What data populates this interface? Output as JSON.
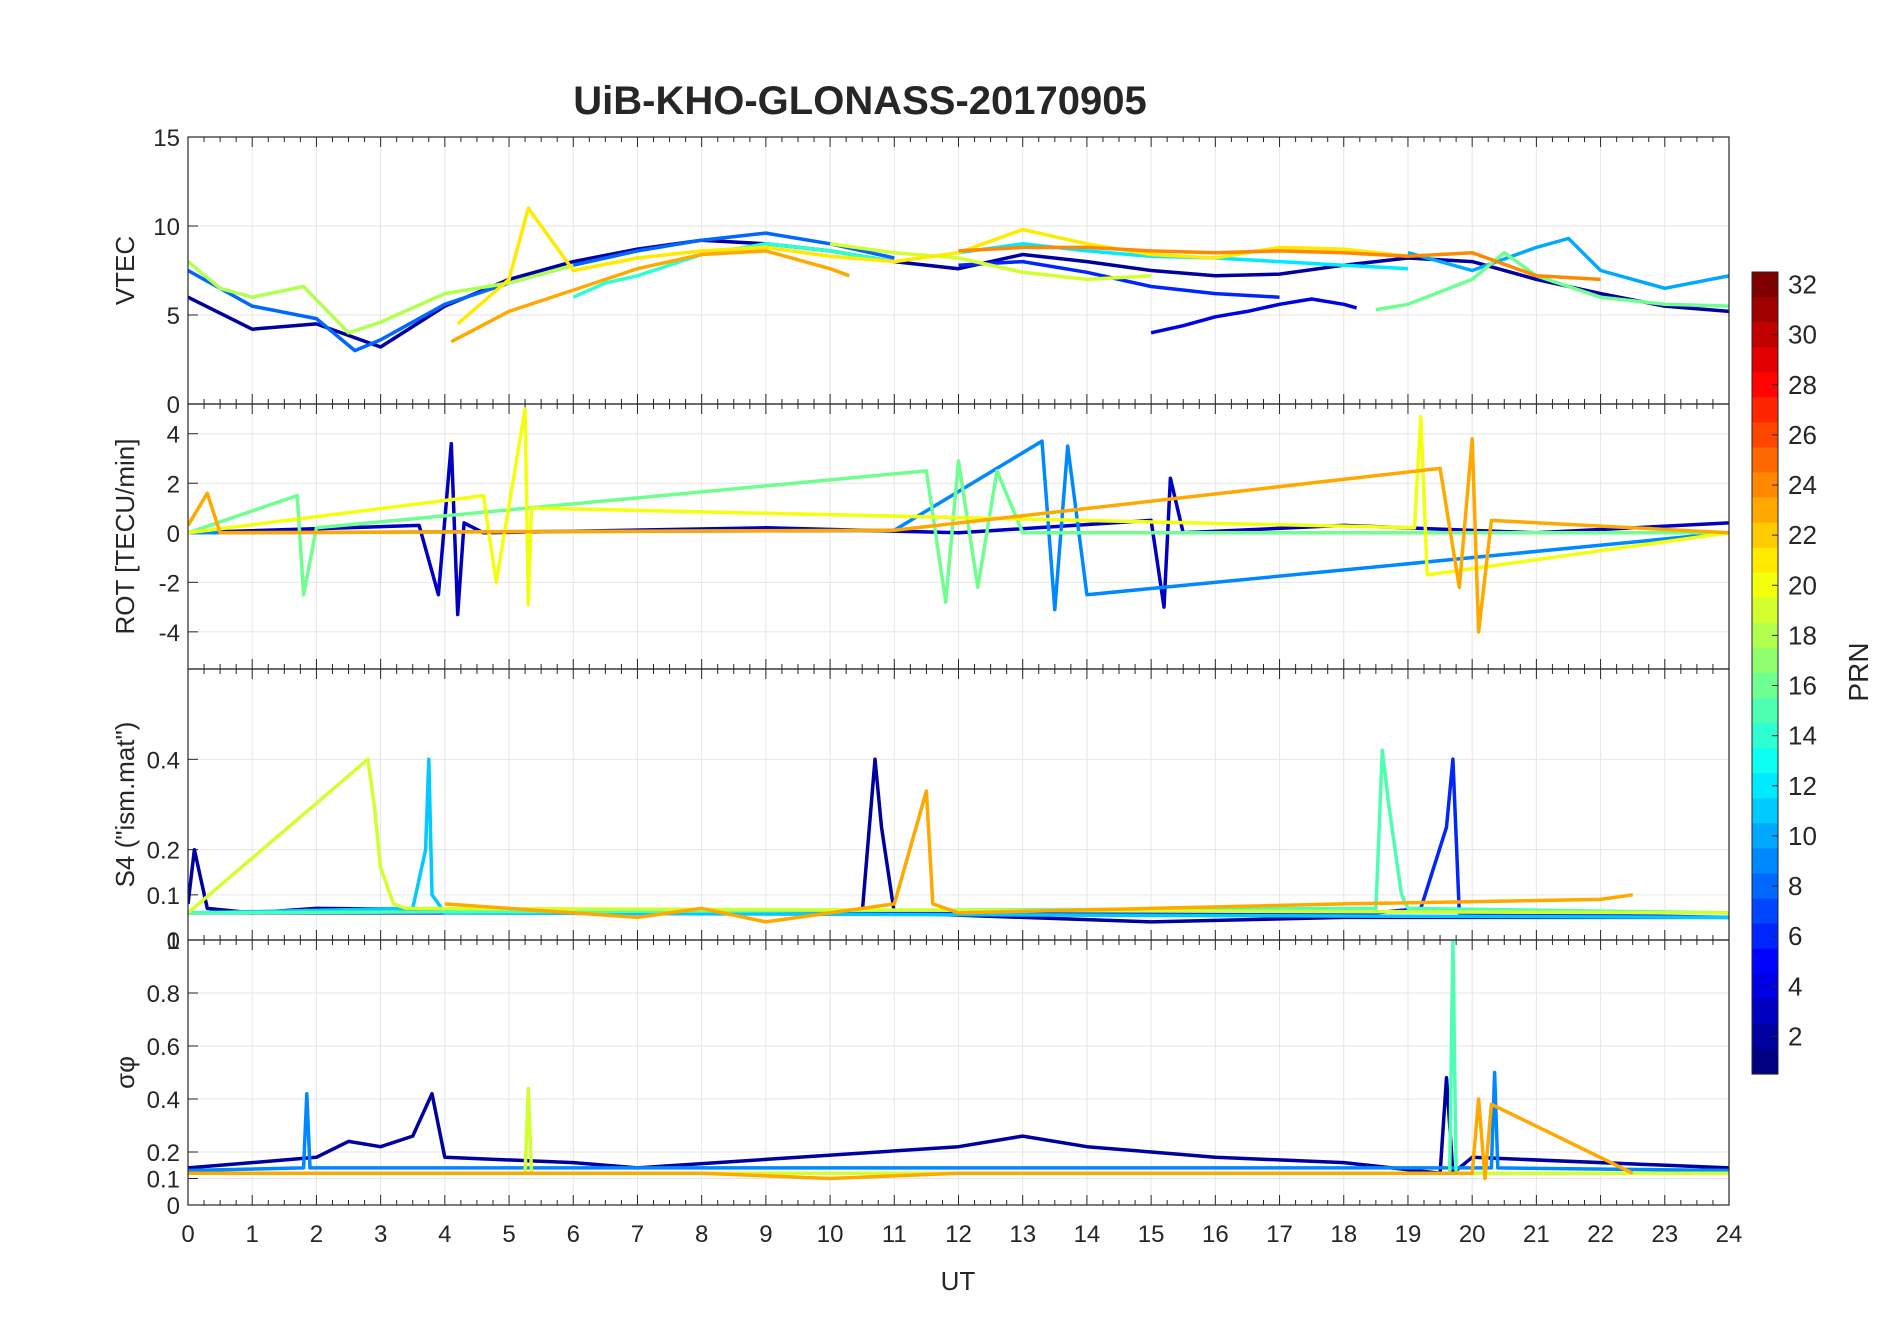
{
  "chart_data": {
    "type": "line",
    "title": "UiB-KHO-GLONASS-20170905",
    "xlabel": "UT",
    "xlim": [
      0,
      24
    ],
    "xticks": [
      "0",
      "1",
      "2",
      "3",
      "4",
      "5",
      "6",
      "7",
      "8",
      "9",
      "10",
      "11",
      "12",
      "13",
      "14",
      "15",
      "16",
      "17",
      "18",
      "19",
      "20",
      "21",
      "22",
      "23",
      "24"
    ],
    "colorbar": {
      "label": "PRN",
      "range": [
        1,
        32
      ],
      "ticks": [
        "2",
        "4",
        "6",
        "8",
        "10",
        "12",
        "14",
        "16",
        "18",
        "20",
        "22",
        "24",
        "26",
        "28",
        "30",
        "32"
      ]
    },
    "panels": [
      {
        "id": "vtec",
        "ylabel": "VTEC",
        "ylim": [
          0,
          15
        ],
        "yticks": [
          {
            "v": 0,
            "t": "0"
          },
          {
            "v": 5,
            "t": "5"
          },
          {
            "v": 10,
            "t": "10"
          },
          {
            "v": 15,
            "t": "15"
          }
        ],
        "series": [
          {
            "prn": 2,
            "x": [
              0,
              1,
              2,
              3,
              4,
              5,
              6,
              7,
              8,
              9,
              10,
              11,
              12,
              13,
              14,
              15,
              16,
              17,
              18,
              19,
              20,
              21,
              22,
              23,
              24
            ],
            "y": [
              6.0,
              4.2,
              4.5,
              3.2,
              5.5,
              7.0,
              8.0,
              8.7,
              9.2,
              9.0,
              8.6,
              8.0,
              7.6,
              8.4,
              8.0,
              7.5,
              7.2,
              7.3,
              7.8,
              8.2,
              8.0,
              7.0,
              6.2,
              5.5,
              5.2
            ]
          },
          {
            "prn": 4,
            "x": [
              15,
              15.5,
              16,
              16.5,
              17,
              17.5,
              18,
              18.2
            ],
            "y": [
              4.0,
              4.4,
              4.9,
              5.2,
              5.6,
              5.9,
              5.6,
              5.4
            ]
          },
          {
            "prn": 6,
            "x": [
              12,
              13,
              14,
              15,
              16,
              17
            ],
            "y": [
              7.8,
              8.0,
              7.4,
              6.6,
              6.2,
              6.0
            ]
          },
          {
            "prn": 8,
            "x": [
              0,
              1,
              2,
              2.6,
              3,
              4,
              5,
              6,
              7,
              8,
              9,
              10,
              11
            ],
            "y": [
              7.5,
              5.5,
              4.8,
              3.0,
              3.6,
              5.6,
              6.8,
              7.8,
              8.6,
              9.2,
              9.6,
              9.0,
              8.2
            ]
          },
          {
            "prn": 10,
            "x": [
              19,
              20,
              21,
              21.5,
              22,
              23,
              24
            ],
            "y": [
              8.5,
              7.5,
              8.8,
              9.3,
              7.5,
              6.5,
              7.2
            ]
          },
          {
            "prn": 12,
            "x": [
              12,
              13,
              14,
              15,
              16,
              17,
              18,
              19
            ],
            "y": [
              8.5,
              9.0,
              8.6,
              8.3,
              8.2,
              8.0,
              7.8,
              7.6
            ]
          },
          {
            "prn": 14,
            "x": [
              6,
              6.5,
              7,
              8,
              9,
              10,
              11
            ],
            "y": [
              6.0,
              6.8,
              7.2,
              8.4,
              9.0,
              8.6,
              8.0
            ]
          },
          {
            "prn": 16,
            "x": [
              18.5,
              19,
              20,
              20.5,
              21,
              22,
              23,
              24
            ],
            "y": [
              5.3,
              5.6,
              7.0,
              8.5,
              7.2,
              6.0,
              5.6,
              5.5
            ]
          },
          {
            "prn": 18,
            "x": [
              0,
              0.5,
              1,
              1.8,
              2.5,
              3,
              4,
              5,
              6
            ],
            "y": [
              8.0,
              6.5,
              6.0,
              6.6,
              4.0,
              4.6,
              6.2,
              6.8,
              7.8
            ]
          },
          {
            "prn": 19,
            "x": [
              10,
              11,
              12,
              13,
              14,
              15
            ],
            "y": [
              9.0,
              8.5,
              8.2,
              7.4,
              7.0,
              7.2
            ]
          },
          {
            "prn": 21,
            "x": [
              4.2,
              5,
              5.3,
              6,
              7,
              8,
              9,
              10,
              11,
              12,
              13,
              14,
              15,
              16,
              17,
              18,
              19
            ],
            "y": [
              4.5,
              7.0,
              11.0,
              7.5,
              8.2,
              8.6,
              8.8,
              8.3,
              8.0,
              8.5,
              9.8,
              9.0,
              8.4,
              8.2,
              8.8,
              8.7,
              8.3
            ]
          },
          {
            "prn": 23,
            "x": [
              4.1,
              5,
              6,
              7,
              8,
              9,
              10,
              10.3
            ],
            "y": [
              3.5,
              5.2,
              6.4,
              7.6,
              8.4,
              8.6,
              7.6,
              7.2
            ]
          },
          {
            "prn": 24,
            "x": [
              12,
              13,
              14,
              15,
              16,
              17,
              18,
              19,
              20,
              21,
              22
            ],
            "y": [
              8.6,
              8.8,
              8.8,
              8.6,
              8.5,
              8.6,
              8.5,
              8.3,
              8.5,
              7.2,
              7.0
            ]
          }
        ]
      },
      {
        "id": "rot",
        "ylabel": "ROT [TECU/min]",
        "ylim": [
          -5.5,
          5.2
        ],
        "yticks": [
          {
            "v": -4,
            "t": "-4"
          },
          {
            "v": -2,
            "t": "-2"
          },
          {
            "v": 0,
            "t": "0"
          },
          {
            "v": 2,
            "t": "2"
          },
          {
            "v": 4,
            "t": "4"
          }
        ],
        "series": [
          {
            "prn": 3,
            "x": [
              0,
              3.6,
              3.9,
              4.1,
              4.2,
              4.3,
              4.6,
              9,
              12,
              15,
              15.2,
              15.3,
              15.5,
              18,
              21,
              24
            ],
            "y": [
              0,
              0.3,
              -2.5,
              3.6,
              -3.3,
              0.4,
              0,
              0.2,
              0,
              0.5,
              -3.0,
              2.2,
              0,
              0.3,
              0,
              0.4
            ]
          },
          {
            "prn": 9,
            "x": [
              0,
              11,
              13.3,
              13.5,
              13.7,
              14,
              24
            ],
            "y": [
              0,
              0.1,
              3.7,
              -3.1,
              3.5,
              -2.5,
              0
            ]
          },
          {
            "prn": 16,
            "x": [
              0,
              1.7,
              1.8,
              2,
              11.5,
              11.8,
              12,
              12.3,
              12.6,
              13,
              24
            ],
            "y": [
              0,
              1.5,
              -2.5,
              0.2,
              2.5,
              -2.8,
              2.9,
              -2.2,
              2.5,
              0,
              0
            ]
          },
          {
            "prn": 20,
            "x": [
              0,
              4.6,
              4.8,
              5.25,
              5.3,
              5.35,
              19.1,
              19.2,
              19.3,
              24
            ],
            "y": [
              0,
              1.5,
              -2.0,
              5.0,
              -2.9,
              1.0,
              0.2,
              4.7,
              -1.7,
              0
            ]
          },
          {
            "prn": 23,
            "x": [
              0,
              0.3,
              0.5,
              11,
              19.5,
              19.8,
              20,
              20.1,
              20.3,
              24
            ],
            "y": [
              0.3,
              1.6,
              0,
              0.1,
              2.6,
              -2.2,
              3.8,
              -4.0,
              0.5,
              0
            ]
          }
        ]
      },
      {
        "id": "s4",
        "ylabel": "S4 (\"ism.mat\")",
        "ylim": [
          0,
          0.6
        ],
        "yticks": [
          {
            "v": 0,
            "t": "0"
          },
          {
            "v": 0.1,
            "t": "0.1"
          },
          {
            "v": 0.2,
            "t": "0.2"
          },
          {
            "v": 0.4,
            "t": "0.4"
          }
        ],
        "series": [
          {
            "prn": 2,
            "x": [
              0,
              0.1,
              0.3,
              1,
              2,
              10.5,
              10.7,
              10.8,
              11,
              15,
              18,
              24
            ],
            "y": [
              0.08,
              0.2,
              0.07,
              0.06,
              0.07,
              0.06,
              0.4,
              0.25,
              0.06,
              0.04,
              0.05,
              0.05
            ]
          },
          {
            "prn": 6,
            "x": [
              0,
              18.5,
              19.2,
              19.6,
              19.7,
              19.8,
              24
            ],
            "y": [
              0.06,
              0.06,
              0.07,
              0.25,
              0.4,
              0.06,
              0.05
            ]
          },
          {
            "prn": 11,
            "x": [
              0,
              3.5,
              3.7,
              3.75,
              3.8,
              4,
              24
            ],
            "y": [
              0.06,
              0.07,
              0.2,
              0.4,
              0.1,
              0.06,
              0.05
            ]
          },
          {
            "prn": 15,
            "x": [
              0,
              18.5,
              18.6,
              18.7,
              18.9,
              19,
              24
            ],
            "y": [
              0.06,
              0.07,
              0.42,
              0.3,
              0.1,
              0.07,
              0.06
            ]
          },
          {
            "prn": 19,
            "x": [
              0,
              2.8,
              2.9,
              3.0,
              3.2,
              3.4,
              24
            ],
            "y": [
              0.06,
              0.4,
              0.3,
              0.16,
              0.08,
              0.07,
              0.06
            ]
          },
          {
            "prn": 23,
            "x": [
              4,
              6,
              7,
              8,
              9,
              10,
              11,
              11.5,
              11.6,
              12,
              15,
              18,
              22,
              22.5
            ],
            "y": [
              0.08,
              0.06,
              0.05,
              0.07,
              0.04,
              0.06,
              0.08,
              0.33,
              0.08,
              0.06,
              0.07,
              0.08,
              0.09,
              0.1
            ]
          }
        ]
      },
      {
        "id": "sigma",
        "ylabel": "σφ",
        "ylim": [
          0,
          1
        ],
        "yticks": [
          {
            "v": 0,
            "t": "0"
          },
          {
            "v": 0.1,
            "t": "0.1"
          },
          {
            "v": 0.2,
            "t": "0.2"
          },
          {
            "v": 0.4,
            "t": "0.4"
          },
          {
            "v": 0.6,
            "t": "0.6"
          },
          {
            "v": 0.8,
            "t": "0.8"
          },
          {
            "v": 1,
            "t": "1"
          }
        ],
        "series": [
          {
            "prn": 2,
            "x": [
              0,
              2,
              2.5,
              3,
              3.5,
              3.8,
              4,
              6,
              7,
              12,
              13,
              14,
              15,
              16,
              18,
              19.5,
              19.6,
              19.7,
              20,
              24
            ],
            "y": [
              0.14,
              0.18,
              0.24,
              0.22,
              0.26,
              0.42,
              0.18,
              0.16,
              0.14,
              0.22,
              0.26,
              0.22,
              0.2,
              0.18,
              0.16,
              0.12,
              0.48,
              0.12,
              0.18,
              0.14
            ]
          },
          {
            "prn": 9,
            "x": [
              0,
              1.8,
              1.85,
              1.9,
              20.3,
              20.35,
              20.4,
              24
            ],
            "y": [
              0.13,
              0.14,
              0.42,
              0.14,
              0.14,
              0.5,
              0.14,
              0.13
            ]
          },
          {
            "prn": 15,
            "x": [
              0,
              19.65,
              19.7,
              19.75,
              24
            ],
            "y": [
              0.12,
              0.12,
              1.0,
              0.12,
              0.12
            ]
          },
          {
            "prn": 19,
            "x": [
              0,
              5.25,
              5.3,
              5.35,
              12.6,
              24
            ],
            "y": [
              0.12,
              0.12,
              0.44,
              0.12,
              0.12,
              0.12
            ]
          },
          {
            "prn": 23,
            "x": [
              0,
              8,
              10,
              12,
              18,
              20,
              20.1,
              20.2,
              20.3,
              22.5
            ],
            "y": [
              0.12,
              0.12,
              0.1,
              0.12,
              0.12,
              0.12,
              0.4,
              0.1,
              0.38,
              0.12
            ]
          }
        ]
      }
    ]
  }
}
